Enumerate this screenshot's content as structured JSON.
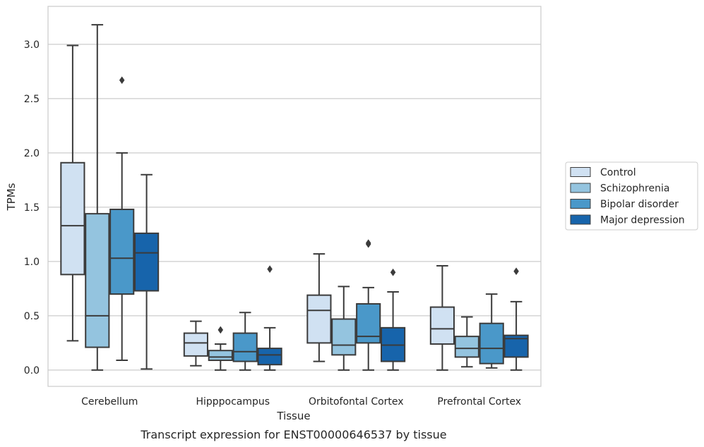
{
  "chart_data": {
    "type": "box",
    "title": "",
    "caption": "Transcript expression for ENST00000646537 by tissue",
    "xlabel": "Tissue",
    "ylabel": "TPMs",
    "ylim": [
      -0.15,
      3.35
    ],
    "yticks": [
      0.0,
      0.5,
      1.0,
      1.5,
      2.0,
      2.5,
      3.0
    ],
    "ytick_labels": [
      "0.0",
      "0.5",
      "1.0",
      "1.5",
      "2.0",
      "2.5",
      "3.0"
    ],
    "grid": "horizontal",
    "legend_position": "right",
    "categories": [
      "Cerebellum",
      "Hipppocampus",
      "Orbitofontal Cortex",
      "Prefrontal Cortex"
    ],
    "series": [
      {
        "name": "Control",
        "color": "#d0e1f2",
        "boxes": [
          {
            "whisker_low": 0.27,
            "q1": 0.88,
            "median": 1.33,
            "q3": 1.91,
            "whisker_high": 2.99,
            "outliers": []
          },
          {
            "whisker_low": 0.04,
            "q1": 0.13,
            "median": 0.25,
            "q3": 0.34,
            "whisker_high": 0.45,
            "outliers": []
          },
          {
            "whisker_low": 0.08,
            "q1": 0.25,
            "median": 0.55,
            "q3": 0.69,
            "whisker_high": 1.07,
            "outliers": []
          },
          {
            "whisker_low": 0.0,
            "q1": 0.24,
            "median": 0.38,
            "q3": 0.58,
            "whisker_high": 0.96,
            "outliers": []
          }
        ]
      },
      {
        "name": "Schizophrenia",
        "color": "#94c4df",
        "boxes": [
          {
            "whisker_low": 0.0,
            "q1": 0.21,
            "median": 0.5,
            "q3": 1.44,
            "whisker_high": 3.18,
            "outliers": []
          },
          {
            "whisker_low": 0.0,
            "q1": 0.09,
            "median": 0.12,
            "q3": 0.18,
            "whisker_high": 0.24,
            "outliers": [
              0.37
            ]
          },
          {
            "whisker_low": 0.0,
            "q1": 0.14,
            "median": 0.23,
            "q3": 0.47,
            "whisker_high": 0.77,
            "outliers": []
          },
          {
            "whisker_low": 0.03,
            "q1": 0.12,
            "median": 0.2,
            "q3": 0.31,
            "whisker_high": 0.49,
            "outliers": []
          }
        ]
      },
      {
        "name": "Bipolar disorder",
        "color": "#4a98c9",
        "boxes": [
          {
            "whisker_low": 0.09,
            "q1": 0.7,
            "median": 1.03,
            "q3": 1.48,
            "whisker_high": 2.0,
            "outliers": [
              2.67
            ]
          },
          {
            "whisker_low": 0.0,
            "q1": 0.08,
            "median": 0.17,
            "q3": 0.34,
            "whisker_high": 0.53,
            "outliers": []
          },
          {
            "whisker_low": 0.0,
            "q1": 0.25,
            "median": 0.31,
            "q3": 0.61,
            "whisker_high": 0.76,
            "outliers": [
              1.16,
              1.17
            ]
          },
          {
            "whisker_low": 0.02,
            "q1": 0.06,
            "median": 0.2,
            "q3": 0.43,
            "whisker_high": 0.7,
            "outliers": []
          }
        ]
      },
      {
        "name": "Major depression",
        "color": "#1764ab",
        "boxes": [
          {
            "whisker_low": 0.01,
            "q1": 0.73,
            "median": 1.08,
            "q3": 1.26,
            "whisker_high": 1.8,
            "outliers": []
          },
          {
            "whisker_low": 0.0,
            "q1": 0.05,
            "median": 0.14,
            "q3": 0.2,
            "whisker_high": 0.39,
            "outliers": [
              0.93
            ]
          },
          {
            "whisker_low": 0.0,
            "q1": 0.08,
            "median": 0.23,
            "q3": 0.39,
            "whisker_high": 0.72,
            "outliers": [
              0.9
            ]
          },
          {
            "whisker_low": 0.0,
            "q1": 0.12,
            "median": 0.29,
            "q3": 0.32,
            "whisker_high": 0.63,
            "outliers": [
              0.91
            ]
          }
        ]
      }
    ]
  }
}
